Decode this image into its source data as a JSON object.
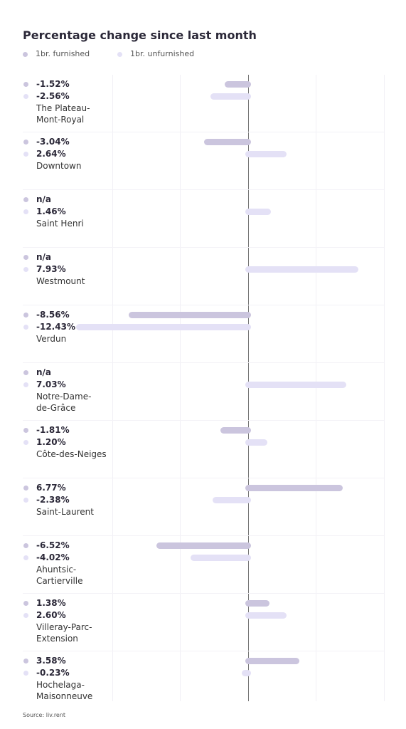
{
  "chart_data": {
    "type": "bar",
    "orientation": "horizontal",
    "title": "Percentage change since last month",
    "categories": [
      "The Plateau-\nMont-Royal",
      "Downtown",
      "Saint Henri",
      "Westmount",
      "Verdun",
      "Notre-Dame-\nde-Grâce",
      "Côte-des-Neiges",
      "Saint-Laurent",
      "Ahuntsic-\nCartierville",
      "Villeray-Parc-\nExtension",
      "Hochelaga-\nMaisonneuve"
    ],
    "series": [
      {
        "name": "1br. furnished",
        "color": "#cbc5de",
        "values": [
          -1.52,
          -3.04,
          null,
          null,
          -8.56,
          null,
          -1.81,
          6.77,
          -6.52,
          1.38,
          3.58
        ],
        "value_labels": [
          "-1.52%",
          "-3.04%",
          "n/a",
          "n/a",
          "-8.56%",
          "n/a",
          "-1.81%",
          "6.77%",
          "-6.52%",
          "1.38%",
          "3.58%"
        ]
      },
      {
        "name": "1br. unfurnished",
        "color": "#e4e1f6",
        "values": [
          -2.56,
          2.64,
          1.46,
          7.93,
          -12.43,
          7.03,
          1.2,
          -2.38,
          -4.02,
          2.6,
          -0.23
        ],
        "value_labels": [
          "-2.56%",
          "2.64%",
          "1.46%",
          "7.93%",
          "-12.43%",
          "7.03%",
          "1.20%",
          "-2.38%",
          "-4.02%",
          "2.60%",
          "-0.23%"
        ]
      }
    ],
    "xlim": [
      -12.5,
      10
    ],
    "xticks": [
      -10,
      -5,
      0,
      5,
      10
    ],
    "grid": true,
    "source": "Source: liv.rent"
  }
}
